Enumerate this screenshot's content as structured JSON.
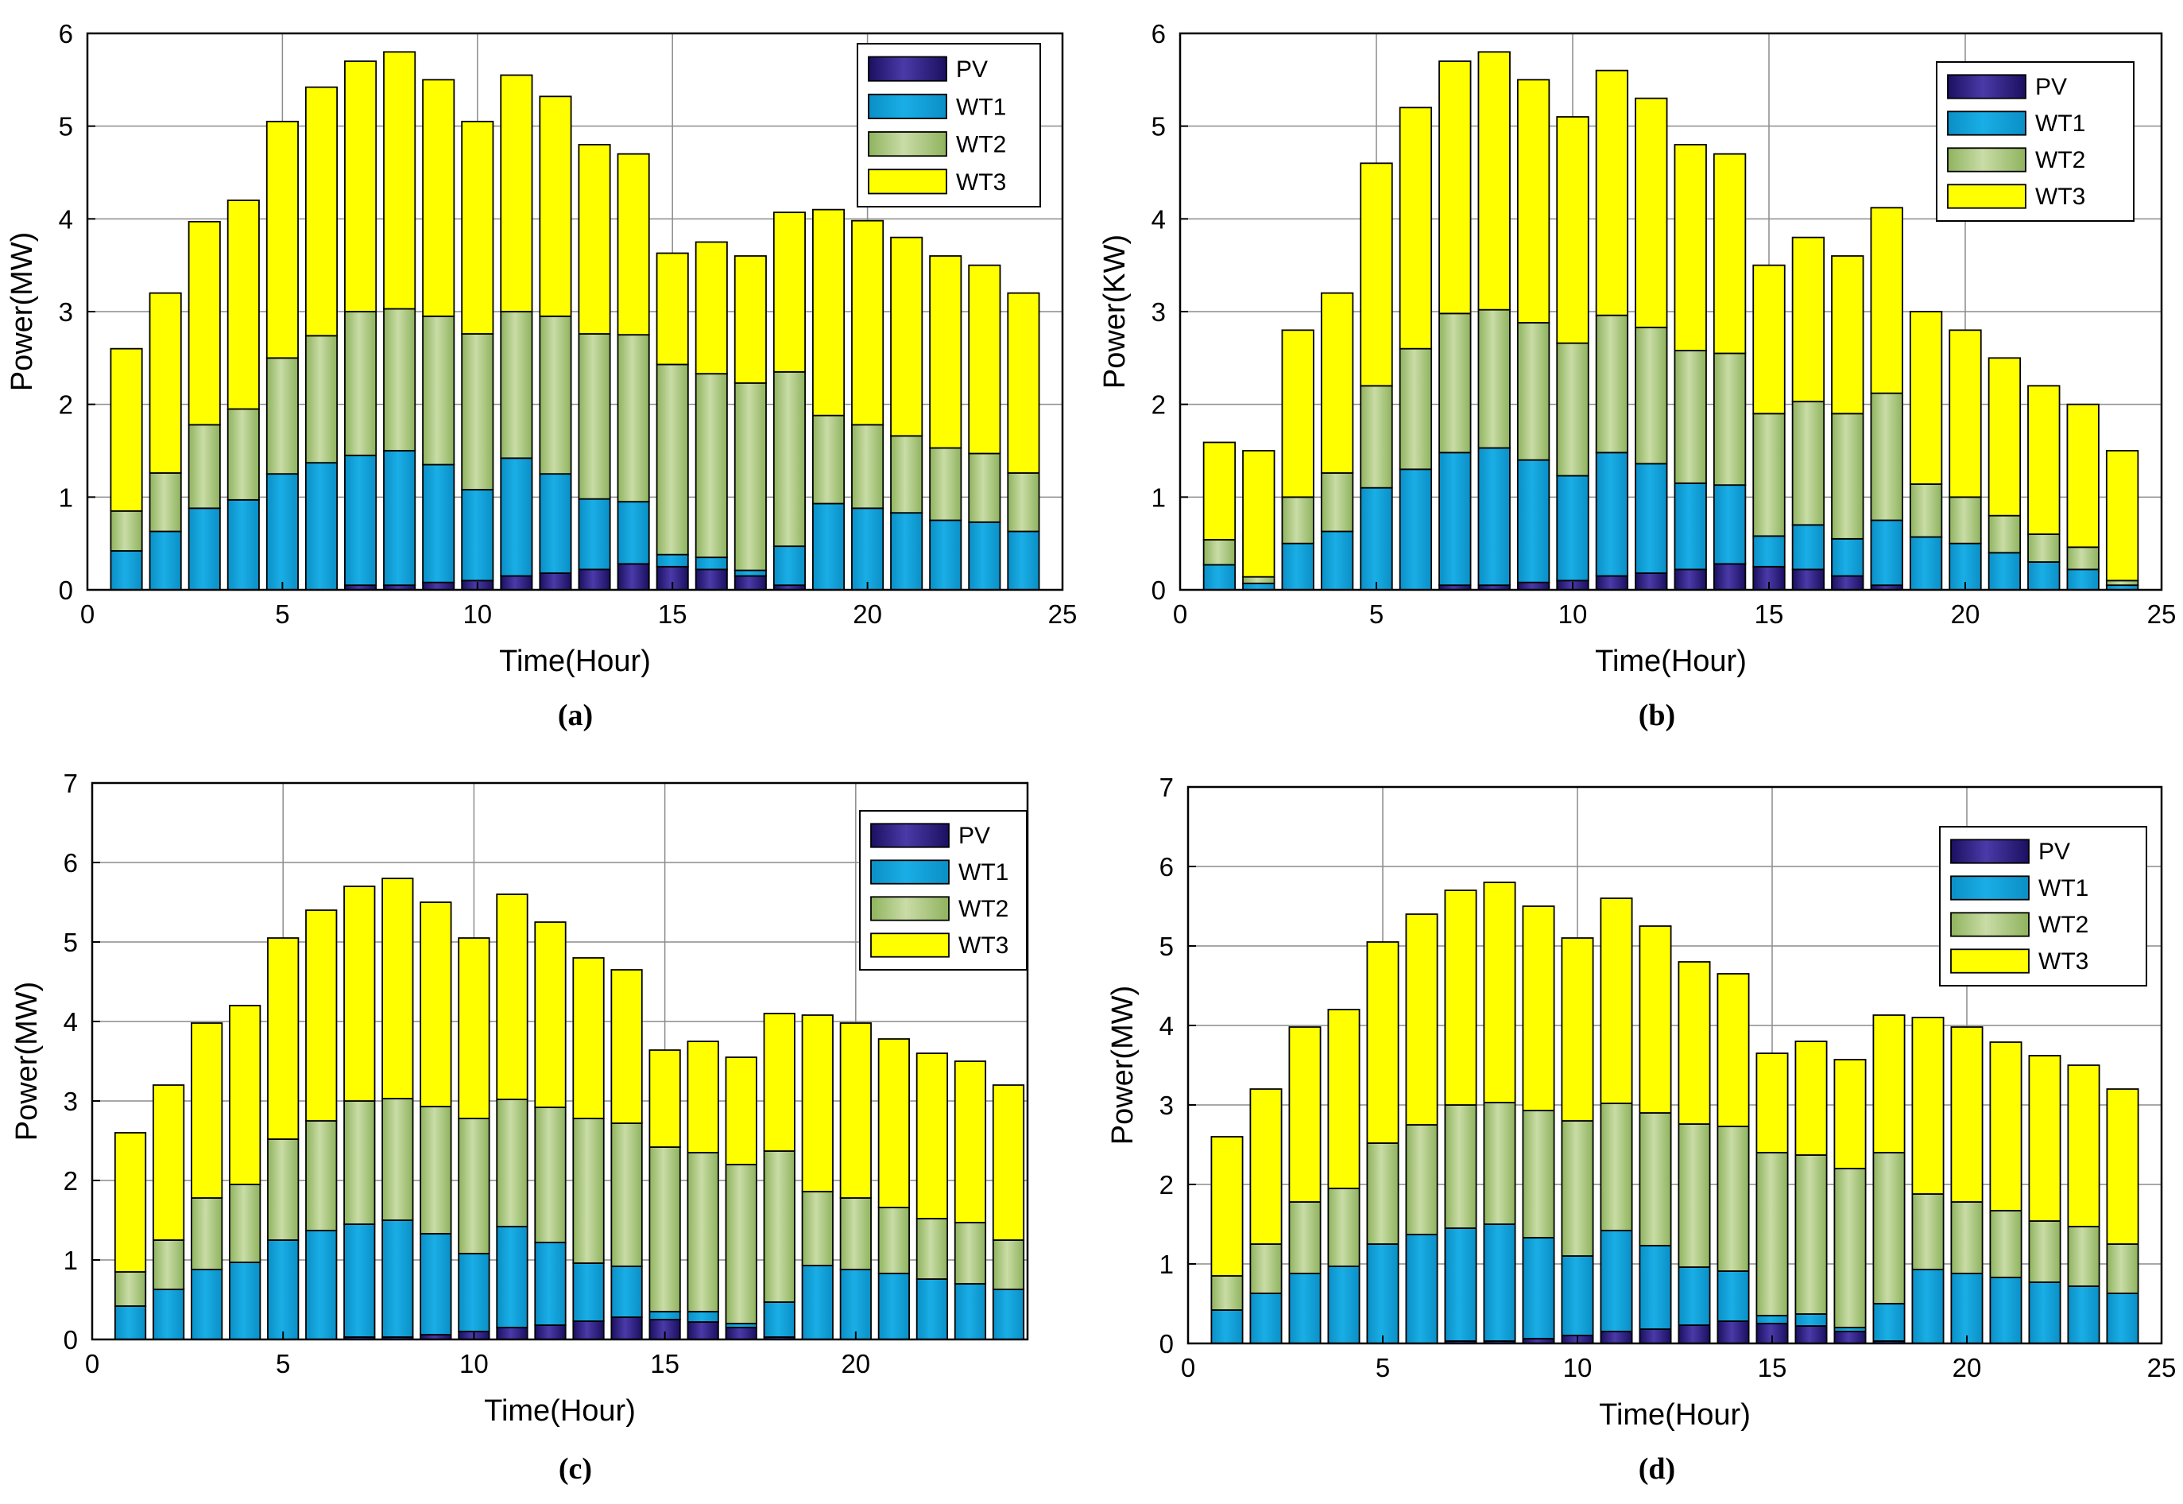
{
  "colors": {
    "PV": "#2c1f7a",
    "WT1": "#0b9bd6",
    "WT2": "#9dbd6e",
    "WT3": "#ffff00"
  },
  "chart_data": [
    {
      "type": "bar",
      "stacked": true,
      "caption": "(a)",
      "xlabel": "Time(Hour)",
      "ylabel": "Power(MW)",
      "xlim": [
        0,
        25
      ],
      "ylim": [
        0,
        6
      ],
      "xticks": [
        "0",
        "5",
        "10",
        "15",
        "20",
        "25"
      ],
      "yticks": [
        "0",
        "1",
        "2",
        "3",
        "4",
        "5",
        "6"
      ],
      "legend_position": "top-right",
      "grid": true,
      "x": [
        1,
        2,
        3,
        4,
        5,
        6,
        7,
        8,
        9,
        10,
        11,
        12,
        13,
        14,
        15,
        16,
        17,
        18,
        19,
        20,
        21,
        22,
        23,
        24
      ],
      "series": [
        {
          "name": "PV",
          "values": [
            0,
            0,
            0,
            0,
            0,
            0,
            0.05,
            0.05,
            0.08,
            0.1,
            0.15,
            0.18,
            0.22,
            0.28,
            0.25,
            0.22,
            0.15,
            0.05,
            0,
            0,
            0,
            0,
            0,
            0
          ]
        },
        {
          "name": "WT1",
          "values": [
            0.42,
            0.63,
            0.88,
            0.97,
            1.25,
            1.37,
            1.4,
            1.45,
            1.27,
            0.98,
            1.27,
            1.07,
            0.76,
            0.67,
            0.13,
            0.13,
            0.06,
            0.42,
            0.93,
            0.88,
            0.83,
            0.75,
            0.73,
            0.63
          ]
        },
        {
          "name": "WT2",
          "values": [
            0.43,
            0.63,
            0.9,
            0.98,
            1.25,
            1.37,
            1.55,
            1.53,
            1.6,
            1.68,
            1.58,
            1.7,
            1.78,
            1.8,
            2.05,
            1.98,
            2.02,
            1.88,
            0.95,
            0.9,
            0.83,
            0.78,
            0.74,
            0.63
          ]
        },
        {
          "name": "WT3",
          "values": [
            1.75,
            1.94,
            2.19,
            2.25,
            2.55,
            2.68,
            2.7,
            2.77,
            2.55,
            2.29,
            2.55,
            2.37,
            2.04,
            1.95,
            1.2,
            1.42,
            1.37,
            1.72,
            2.22,
            2.2,
            2.14,
            2.07,
            2.03,
            1.94
          ]
        }
      ]
    },
    {
      "type": "bar",
      "stacked": true,
      "caption": "(b)",
      "xlabel": "Time(Hour)",
      "ylabel": "Power(KW)",
      "xlim": [
        0,
        25
      ],
      "ylim": [
        0,
        6
      ],
      "xticks": [
        "0",
        "5",
        "10",
        "15",
        "20",
        "25"
      ],
      "yticks": [
        "0",
        "1",
        "2",
        "3",
        "4",
        "5",
        "6"
      ],
      "legend_position": "top-right",
      "grid": true,
      "x": [
        1,
        2,
        3,
        4,
        5,
        6,
        7,
        8,
        9,
        10,
        11,
        12,
        13,
        14,
        15,
        16,
        17,
        18,
        19,
        20,
        21,
        22,
        23,
        24
      ],
      "series": [
        {
          "name": "PV",
          "values": [
            0,
            0,
            0,
            0,
            0,
            0,
            0.05,
            0.05,
            0.08,
            0.1,
            0.15,
            0.18,
            0.22,
            0.28,
            0.25,
            0.22,
            0.15,
            0.05,
            0,
            0,
            0,
            0,
            0,
            0
          ]
        },
        {
          "name": "WT1",
          "values": [
            0.27,
            0.07,
            0.5,
            0.63,
            1.1,
            1.3,
            1.43,
            1.48,
            1.32,
            1.13,
            1.33,
            1.18,
            0.93,
            0.85,
            0.33,
            0.48,
            0.4,
            0.7,
            0.57,
            0.5,
            0.4,
            0.3,
            0.22,
            0.05
          ]
        },
        {
          "name": "WT2",
          "values": [
            0.27,
            0.07,
            0.5,
            0.63,
            1.1,
            1.3,
            1.5,
            1.49,
            1.48,
            1.43,
            1.48,
            1.47,
            1.43,
            1.42,
            1.32,
            1.33,
            1.35,
            1.37,
            0.57,
            0.5,
            0.4,
            0.3,
            0.24,
            0.05
          ]
        },
        {
          "name": "WT3",
          "values": [
            1.05,
            1.36,
            1.8,
            1.94,
            2.4,
            2.6,
            2.72,
            2.78,
            2.62,
            2.44,
            2.64,
            2.47,
            2.22,
            2.15,
            1.6,
            1.77,
            1.7,
            2.0,
            1.86,
            1.8,
            1.7,
            1.6,
            1.54,
            1.4
          ]
        }
      ]
    },
    {
      "type": "bar",
      "stacked": true,
      "caption": "(c)",
      "xlabel": "Time(Hour)",
      "ylabel": "Power(MW)",
      "xlim": [
        0,
        24.5
      ],
      "ylim": [
        0,
        7
      ],
      "xticks": [
        "0",
        "5",
        "10",
        "15",
        "20"
      ],
      "yticks": [
        "0",
        "1",
        "2",
        "3",
        "4",
        "5",
        "6",
        "7"
      ],
      "legend_position": "top-right",
      "grid": true,
      "x": [
        1,
        2,
        3,
        4,
        5,
        6,
        7,
        8,
        9,
        10,
        11,
        12,
        13,
        14,
        15,
        16,
        17,
        18,
        19,
        20,
        21,
        22,
        23,
        24
      ],
      "series": [
        {
          "name": "PV",
          "values": [
            0,
            0,
            0,
            0,
            0,
            0,
            0.03,
            0.03,
            0.06,
            0.1,
            0.15,
            0.18,
            0.23,
            0.28,
            0.25,
            0.22,
            0.15,
            0.03,
            0,
            0,
            0,
            0,
            0,
            0
          ]
        },
        {
          "name": "WT1",
          "values": [
            0.42,
            0.63,
            0.88,
            0.97,
            1.25,
            1.37,
            1.42,
            1.47,
            1.27,
            0.98,
            1.27,
            1.04,
            0.73,
            0.64,
            0.1,
            0.13,
            0.05,
            0.44,
            0.93,
            0.88,
            0.83,
            0.76,
            0.7,
            0.63
          ]
        },
        {
          "name": "WT2",
          "values": [
            0.43,
            0.62,
            0.9,
            0.98,
            1.27,
            1.38,
            1.55,
            1.53,
            1.6,
            1.7,
            1.6,
            1.7,
            1.82,
            1.8,
            2.07,
            2.0,
            2.0,
            1.9,
            0.93,
            0.9,
            0.83,
            0.76,
            0.77,
            0.62
          ]
        },
        {
          "name": "WT3",
          "values": [
            1.75,
            1.95,
            2.2,
            2.25,
            2.53,
            2.65,
            2.7,
            2.77,
            2.57,
            2.27,
            2.58,
            2.33,
            2.02,
            1.93,
            1.22,
            1.4,
            1.35,
            1.73,
            2.22,
            2.2,
            2.12,
            2.08,
            2.03,
            1.95
          ]
        }
      ]
    },
    {
      "type": "bar",
      "stacked": true,
      "caption": "(d)",
      "xlabel": "Time(Hour)",
      "ylabel": "Power(MW)",
      "xlim": [
        0,
        25
      ],
      "ylim": [
        0,
        7
      ],
      "xticks": [
        "0",
        "5",
        "10",
        "15",
        "20",
        "25"
      ],
      "yticks": [
        "0",
        "1",
        "2",
        "3",
        "4",
        "5",
        "6",
        "7"
      ],
      "legend_position": "top-right",
      "grid": true,
      "x": [
        1,
        2,
        3,
        4,
        5,
        6,
        7,
        8,
        9,
        10,
        11,
        12,
        13,
        14,
        15,
        16,
        17,
        18,
        19,
        20,
        21,
        22,
        23,
        24
      ],
      "series": [
        {
          "name": "PV",
          "values": [
            0,
            0,
            0,
            0,
            0,
            0,
            0.03,
            0.03,
            0.06,
            0.1,
            0.15,
            0.18,
            0.23,
            0.28,
            0.25,
            0.22,
            0.15,
            0.03,
            0,
            0,
            0,
            0,
            0,
            0
          ]
        },
        {
          "name": "WT1",
          "values": [
            0.42,
            0.63,
            0.88,
            0.97,
            1.25,
            1.37,
            1.42,
            1.47,
            1.27,
            1.0,
            1.27,
            1.05,
            0.73,
            0.63,
            0.1,
            0.15,
            0.05,
            0.47,
            0.93,
            0.88,
            0.83,
            0.77,
            0.72,
            0.63
          ]
        },
        {
          "name": "WT2",
          "values": [
            0.43,
            0.62,
            0.9,
            0.98,
            1.27,
            1.38,
            1.55,
            1.53,
            1.6,
            1.7,
            1.6,
            1.67,
            1.8,
            1.82,
            2.05,
            2.0,
            2.0,
            1.9,
            0.95,
            0.9,
            0.84,
            0.77,
            0.75,
            0.62
          ]
        },
        {
          "name": "WT3",
          "values": [
            1.75,
            1.95,
            2.2,
            2.25,
            2.53,
            2.65,
            2.7,
            2.77,
            2.57,
            2.3,
            2.58,
            2.35,
            2.04,
            1.92,
            1.25,
            1.43,
            1.37,
            1.73,
            2.22,
            2.2,
            2.12,
            2.08,
            2.03,
            1.95
          ]
        }
      ]
    }
  ]
}
